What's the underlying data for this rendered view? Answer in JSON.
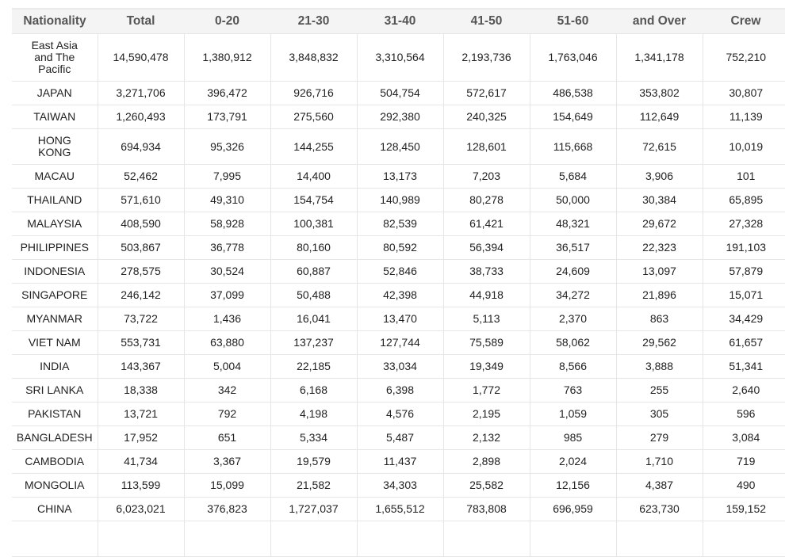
{
  "columns": [
    "Nationality",
    "Total",
    "0-20",
    "21-30",
    "31-40",
    "41-50",
    "51-60",
    "and Over",
    "Crew"
  ],
  "rows": [
    [
      "East Asia\nand The\nPacific",
      "14,590,478",
      "1,380,912",
      "3,848,832",
      "3,310,564",
      "2,193,736",
      "1,763,046",
      "1,341,178",
      "752,210"
    ],
    [
      "JAPAN",
      "3,271,706",
      "396,472",
      "926,716",
      "504,754",
      "572,617",
      "486,538",
      "353,802",
      "30,807"
    ],
    [
      "TAIWAN",
      "1,260,493",
      "173,791",
      "275,560",
      "292,380",
      "240,325",
      "154,649",
      "112,649",
      "11,139"
    ],
    [
      "HONG\nKONG",
      "694,934",
      "95,326",
      "144,255",
      "128,450",
      "128,601",
      "115,668",
      "72,615",
      "10,019"
    ],
    [
      "MACAU",
      "52,462",
      "7,995",
      "14,400",
      "13,173",
      "7,203",
      "5,684",
      "3,906",
      "101"
    ],
    [
      "THAILAND",
      "571,610",
      "49,310",
      "154,754",
      "140,989",
      "80,278",
      "50,000",
      "30,384",
      "65,895"
    ],
    [
      "MALAYSIA",
      "408,590",
      "58,928",
      "100,381",
      "82,539",
      "61,421",
      "48,321",
      "29,672",
      "27,328"
    ],
    [
      "PHILIPPINES",
      "503,867",
      "36,778",
      "80,160",
      "80,592",
      "56,394",
      "36,517",
      "22,323",
      "191,103"
    ],
    [
      "INDONESIA",
      "278,575",
      "30,524",
      "60,887",
      "52,846",
      "38,733",
      "24,609",
      "13,097",
      "57,879"
    ],
    [
      "SINGAPORE",
      "246,142",
      "37,099",
      "50,488",
      "42,398",
      "44,918",
      "34,272",
      "21,896",
      "15,071"
    ],
    [
      "MYANMAR",
      "73,722",
      "1,436",
      "16,041",
      "13,470",
      "5,113",
      "2,370",
      "863",
      "34,429"
    ],
    [
      "VIET NAM",
      "553,731",
      "63,880",
      "137,237",
      "127,744",
      "75,589",
      "58,062",
      "29,562",
      "61,657"
    ],
    [
      "INDIA",
      "143,367",
      "5,004",
      "22,185",
      "33,034",
      "19,349",
      "8,566",
      "3,888",
      "51,341"
    ],
    [
      "SRI LANKA",
      "18,338",
      "342",
      "6,168",
      "6,398",
      "1,772",
      "763",
      "255",
      "2,640"
    ],
    [
      "PAKISTAN",
      "13,721",
      "792",
      "4,198",
      "4,576",
      "2,195",
      "1,059",
      "305",
      "596"
    ],
    [
      "BANGLADESH",
      "17,952",
      "651",
      "5,334",
      "5,487",
      "2,132",
      "985",
      "279",
      "3,084"
    ],
    [
      "CAMBODIA",
      "41,734",
      "3,367",
      "19,579",
      "11,437",
      "2,898",
      "2,024",
      "1,710",
      "719"
    ],
    [
      "MONGOLIA",
      "113,599",
      "15,099",
      "21,582",
      "34,303",
      "25,582",
      "12,156",
      "4,387",
      "490"
    ],
    [
      "CHINA",
      "6,023,021",
      "376,823",
      "1,727,037",
      "1,655,512",
      "783,808",
      "696,959",
      "623,730",
      "159,152"
    ]
  ]
}
